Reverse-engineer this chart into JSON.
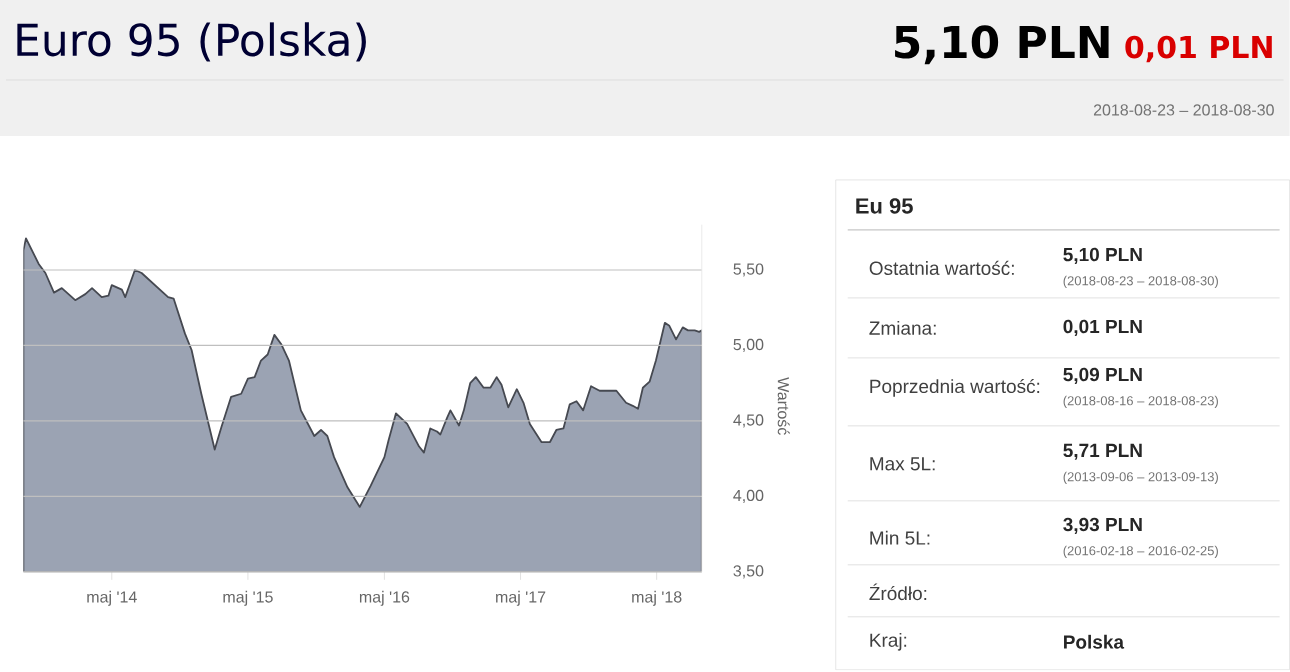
{
  "chart_data": [
    {
      "type": "area",
      "title": "Euro 95 (Polska)",
      "annotations": [
        "5,10 PLN",
        "0,01 PLN",
        "2018-08-23 – 2018-08-30"
      ],
      "ylabel": "Wartość",
      "color": "#9ba3b3",
      "grid": "y",
      "x": [
        "2013-09-06",
        "2013-09-13",
        "2013-10-17",
        "2013-11-04",
        "2013-11-27",
        "2013-12-18",
        "2014-01-23",
        "2014-02-19",
        "2014-03-09",
        "2014-04-04",
        "2014-04-22",
        "2014-05-01",
        "2014-05-28",
        "2014-06-06",
        "2014-07-02",
        "2014-07-20",
        "2014-09-29",
        "2014-10-14",
        "2014-11-13",
        "2014-12-01",
        "2014-12-27",
        "2015-02-01",
        "2015-02-19",
        "2015-03-17",
        "2015-04-13",
        "2015-05-01",
        "2015-05-19",
        "2015-06-05",
        "2015-06-23",
        "2015-07-11",
        "2015-07-29",
        "2015-08-19",
        "2015-09-20",
        "2015-10-26",
        "2015-11-13",
        "2015-11-30",
        "2015-12-18",
        "2016-01-23",
        "2016-02-25",
        "2016-03-25",
        "2016-05-01",
        "2016-05-12",
        "2016-06-01",
        "2016-07-01",
        "2016-08-02",
        "2016-08-15",
        "2016-09-01",
        "2016-09-19",
        "2016-09-28",
        "2016-10-16",
        "2016-10-25",
        "2016-11-17",
        "2016-11-30",
        "2016-12-17",
        "2017-01-01",
        "2017-01-22",
        "2017-02-09",
        "2017-02-26",
        "2017-03-11",
        "2017-03-29",
        "2017-04-21",
        "2017-05-09",
        "2017-05-26",
        "2017-06-26",
        "2017-07-19",
        "2017-08-05",
        "2017-08-24",
        "2017-09-10",
        "2017-09-28",
        "2017-10-16",
        "2017-11-06",
        "2017-11-29",
        "2017-12-26",
        "2018-01-13",
        "2018-02-08",
        "2018-02-26",
        "2018-03-12",
        "2018-03-25",
        "2018-04-12",
        "2018-04-29",
        "2018-05-23",
        "2018-06-04",
        "2018-06-22",
        "2018-07-10",
        "2018-07-24",
        "2018-08-11",
        "2018-08-23",
        "2018-08-30"
      ],
      "values": [
        5.63,
        5.71,
        5.54,
        5.48,
        5.35,
        5.38,
        5.3,
        5.34,
        5.38,
        5.32,
        5.33,
        5.4,
        5.37,
        5.32,
        5.5,
        5.48,
        5.32,
        5.31,
        5.08,
        4.97,
        4.68,
        4.31,
        4.46,
        4.66,
        4.68,
        4.78,
        4.79,
        4.9,
        4.94,
        5.07,
        5.01,
        4.9,
        4.57,
        4.4,
        4.44,
        4.4,
        4.26,
        4.06,
        3.93,
        4.07,
        4.26,
        4.37,
        4.55,
        4.48,
        4.33,
        4.29,
        4.45,
        4.43,
        4.41,
        4.52,
        4.57,
        4.47,
        4.57,
        4.75,
        4.79,
        4.72,
        4.72,
        4.79,
        4.74,
        4.59,
        4.71,
        4.62,
        4.48,
        4.36,
        4.36,
        4.44,
        4.45,
        4.61,
        4.63,
        4.57,
        4.73,
        4.7,
        4.7,
        4.7,
        4.62,
        4.6,
        4.58,
        4.72,
        4.76,
        4.9,
        5.15,
        5.13,
        5.04,
        5.12,
        5.1,
        5.1,
        5.09,
        5.1
      ],
      "xlim": [
        "2013-09-06",
        "2018-08-30"
      ],
      "xticks": [
        {
          "value": "2014-05-01",
          "label": "maj '14"
        },
        {
          "value": "2015-05-01",
          "label": "maj '15"
        },
        {
          "value": "2016-05-01",
          "label": "maj '16"
        },
        {
          "value": "2017-05-01",
          "label": "maj '17"
        },
        {
          "value": "2018-05-01",
          "label": "maj '18"
        }
      ],
      "ylim": [
        3.5,
        5.8
      ],
      "yticks": [
        {
          "value": 3.5,
          "label": "3,50"
        },
        {
          "value": 4.0,
          "label": "4,00"
        },
        {
          "value": 4.5,
          "label": "4,50"
        },
        {
          "value": 5.0,
          "label": "5,00"
        },
        {
          "value": 5.5,
          "label": "5,50"
        }
      ]
    },
    {
      "type": "other",
      "title": "Eu 95",
      "annotations": [
        "Ostatnia wartość:",
        "5,10 PLN",
        "(2018-08-23 – 2018-08-30)",
        "Zmiana:",
        "0,01 PLN",
        "Poprzednia wartość:",
        "5,09 PLN",
        "(2018-08-16 – 2018-08-23)",
        "Max 5L:",
        "5,71 PLN",
        "(2013-09-06 – 2013-09-13)",
        "Min 5L:",
        "3,93 PLN",
        "(2016-02-18 – 2016-02-25)",
        "Źródło:",
        "Kraj:",
        "Polska"
      ]
    }
  ]
}
